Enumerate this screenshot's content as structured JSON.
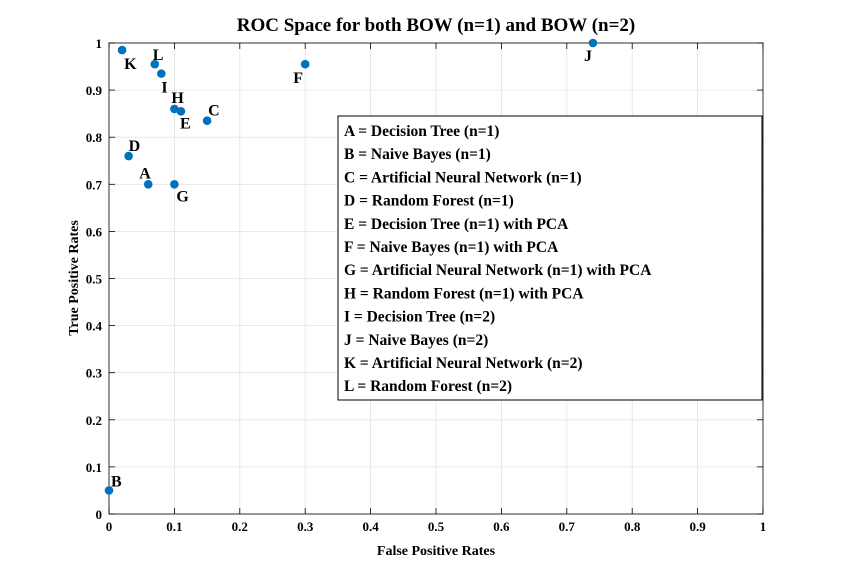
{
  "chart_data": {
    "type": "scatter",
    "title": "ROC Space for both BOW (n=1) and BOW (n=2)",
    "xlabel": "False Positive Rates",
    "ylabel": "True Positive Rates",
    "xlim": [
      0,
      1
    ],
    "ylim": [
      0,
      1
    ],
    "xticks": [
      "0",
      "0.1",
      "0.2",
      "0.3",
      "0.4",
      "0.5",
      "0.6",
      "0.7",
      "0.8",
      "0.9",
      "1"
    ],
    "yticks": [
      "0",
      "0.1",
      "0.2",
      "0.3",
      "0.4",
      "0.5",
      "0.6",
      "0.7",
      "0.8",
      "0.9",
      "1"
    ],
    "grid": true,
    "legend_position": "center-right",
    "marker_color": "#0072BD",
    "points": [
      {
        "label": "A",
        "x": 0.06,
        "y": 0.7
      },
      {
        "label": "B",
        "x": 0.0,
        "y": 0.05
      },
      {
        "label": "C",
        "x": 0.15,
        "y": 0.835
      },
      {
        "label": "D",
        "x": 0.03,
        "y": 0.76
      },
      {
        "label": "E",
        "x": 0.11,
        "y": 0.855
      },
      {
        "label": "F",
        "x": 0.3,
        "y": 0.955
      },
      {
        "label": "G",
        "x": 0.1,
        "y": 0.7
      },
      {
        "label": "H",
        "x": 0.1,
        "y": 0.86
      },
      {
        "label": "I",
        "x": 0.08,
        "y": 0.935
      },
      {
        "label": "J",
        "x": 0.74,
        "y": 1.0
      },
      {
        "label": "K",
        "x": 0.02,
        "y": 0.985
      },
      {
        "label": "L",
        "x": 0.07,
        "y": 0.955
      }
    ],
    "legend": [
      "A = Decision Tree (n=1)",
      "B = Naive Bayes (n=1)",
      "C = Artificial Neural Network (n=1)",
      "D = Random Forest (n=1)",
      "E = Decision Tree (n=1) with PCA",
      "F = Naive Bayes (n=1) with PCA",
      "G = Artificial Neural Network (n=1) with PCA",
      "H = Random Forest (n=1) with PCA",
      "I = Decision Tree (n=2)",
      "J = Naive Bayes (n=2)",
      "K = Artificial Neural Network (n=2)",
      "L = Random Forest (n=2)"
    ]
  }
}
